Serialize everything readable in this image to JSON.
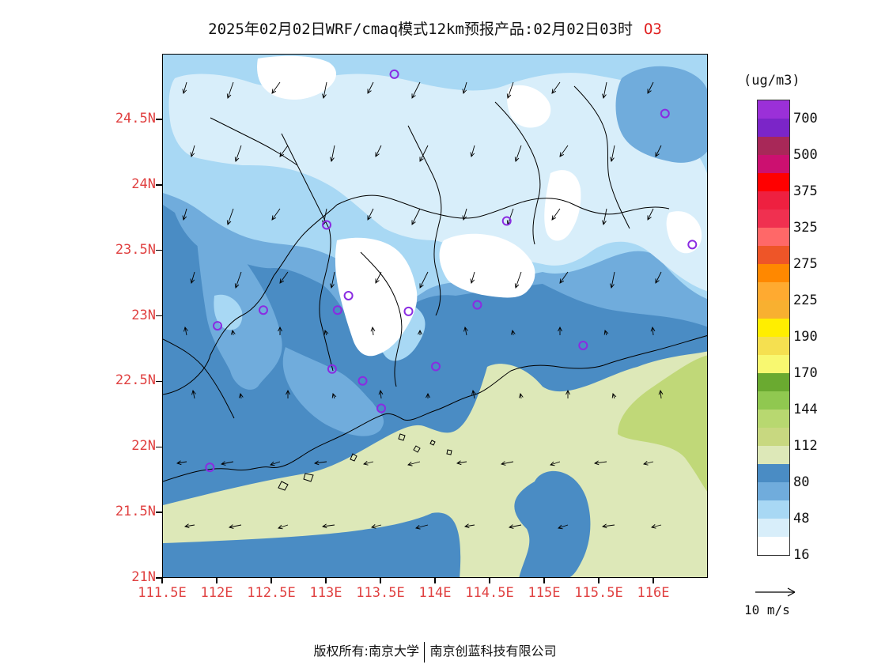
{
  "title": {
    "text": "2025年02月02日WRF/cmaq模式12km预报产品:02月02日03时",
    "species": "O3"
  },
  "map": {
    "lon_range": [
      111.5,
      116.5
    ],
    "lat_range": [
      21.0,
      25.0
    ],
    "x_ticks": [
      "111.5E",
      "112E",
      "112.5E",
      "113E",
      "113.5E",
      "114E",
      "114.5E",
      "115E",
      "115.5E",
      "116E"
    ],
    "y_ticks": [
      "21N",
      "21.5N",
      "22N",
      "22.5N",
      "23N",
      "23.5N",
      "24N",
      "24.5N"
    ],
    "stations": [
      {
        "lon": 113.62,
        "lat": 24.85
      },
      {
        "lon": 116.1,
        "lat": 24.55
      },
      {
        "lon": 113.0,
        "lat": 23.7
      },
      {
        "lon": 114.65,
        "lat": 23.73
      },
      {
        "lon": 116.35,
        "lat": 23.55
      },
      {
        "lon": 113.2,
        "lat": 23.16
      },
      {
        "lon": 113.1,
        "lat": 23.05
      },
      {
        "lon": 112.42,
        "lat": 23.05
      },
      {
        "lon": 113.75,
        "lat": 23.04
      },
      {
        "lon": 114.38,
        "lat": 23.09
      },
      {
        "lon": 112.0,
        "lat": 22.93
      },
      {
        "lon": 115.35,
        "lat": 22.78
      },
      {
        "lon": 113.05,
        "lat": 22.6
      },
      {
        "lon": 114.0,
        "lat": 22.62
      },
      {
        "lon": 113.33,
        "lat": 22.51
      },
      {
        "lon": 113.5,
        "lat": 22.3
      },
      {
        "lon": 111.93,
        "lat": 21.85
      }
    ]
  },
  "colorbar": {
    "unit": "(ug/m3)",
    "colors": [
      "#9b30d8",
      "#7b25c8",
      "#a82858",
      "#cc1070",
      "#ff0000",
      "#ee2040",
      "#f03050",
      "#ff6868",
      "#ee5528",
      "#ff8800",
      "#ffaa30",
      "#f8b030",
      "#ffee00",
      "#f5e050",
      "#f8f870",
      "#6aaa30",
      "#90c850",
      "#b8d870",
      "#c8d880",
      "#dde8b8",
      "#4a8cc4",
      "#70acdc",
      "#a8d8f4",
      "#d8eefa",
      "#ffffff"
    ],
    "labels": [
      "700",
      "500",
      "375",
      "325",
      "275",
      "225",
      "190",
      "170",
      "144",
      "112",
      "80",
      "48",
      "16"
    ]
  },
  "vector_reference": {
    "label": "10 m/s"
  },
  "copyright": {
    "prefix": "版权所有:",
    "org1": "南京大学",
    "org2": "南京创蓝科技有限公司"
  }
}
